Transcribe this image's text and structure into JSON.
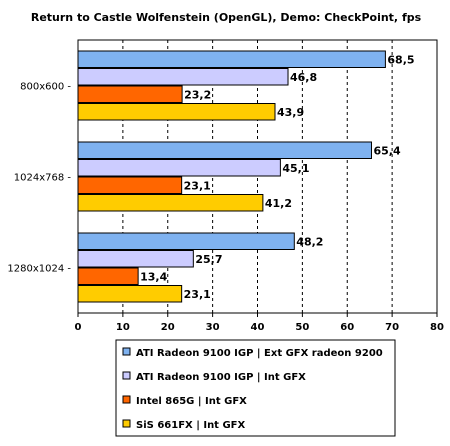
{
  "chart_data": {
    "type": "bar",
    "orientation": "horizontal",
    "title": "Return to Castle Wolfenstein (OpenGL), Demo: CheckPoint, fps",
    "categories": [
      "800x600 -",
      "1024x768 -",
      "1280x1024 -"
    ],
    "series": [
      {
        "name": "ATI Radeon 9100 IGP | Ext GFX radeon 9200",
        "color": "#7fb2f0",
        "values": [
          68.5,
          65.4,
          48.2
        ],
        "labels": [
          "68,5",
          "65,4",
          "48,2"
        ]
      },
      {
        "name": "ATI Radeon 9100 IGP | Int GFX",
        "color": "#ccccff",
        "values": [
          46.8,
          45.1,
          25.7
        ],
        "labels": [
          "46,8",
          "45,1",
          "25,7"
        ]
      },
      {
        "name": "Intel 865G | Int GFX",
        "color": "#ff6600",
        "values": [
          23.2,
          23.1,
          13.4
        ],
        "labels": [
          "23,2",
          "23,1",
          "13,4"
        ]
      },
      {
        "name": "SiS 661FX | Int GFX",
        "color": "#ffcc00",
        "values": [
          43.9,
          41.2,
          23.1
        ],
        "labels": [
          "43,9",
          "41,2",
          "23,1"
        ]
      }
    ],
    "xlim": [
      0,
      80
    ],
    "ticks": [
      0,
      10,
      20,
      30,
      40,
      50,
      60,
      70,
      80
    ],
    "grid": true,
    "legend_position": "bottom"
  }
}
